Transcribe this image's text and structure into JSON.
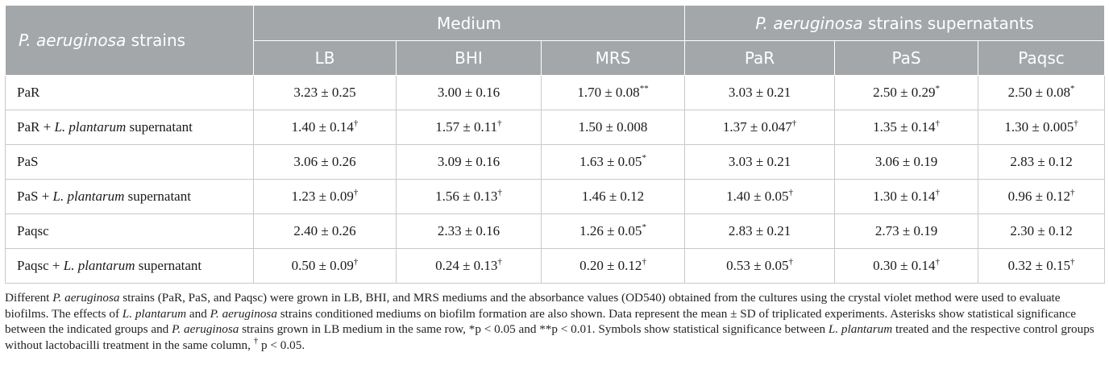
{
  "header": {
    "strain_col_italic": "P. aeruginosa",
    "strain_col_rest": " strains",
    "group_medium": "Medium",
    "group_super_italic": "P. aeruginosa",
    "group_super_rest": " strains supernatants",
    "subcols": [
      "LB",
      "BHI",
      "MRS",
      "PaR",
      "PaS",
      "Paqsc"
    ]
  },
  "rows": [
    {
      "strain": "PaR",
      "species": "",
      "suffix": "",
      "cells": [
        {
          "v": "3.23 ± 0.25",
          "s": ""
        },
        {
          "v": "3.00 ± 0.16",
          "s": ""
        },
        {
          "v": "1.70 ± 0.08",
          "s": "**"
        },
        {
          "v": "3.03 ± 0.21",
          "s": ""
        },
        {
          "v": "2.50 ± 0.29",
          "s": "*"
        },
        {
          "v": "2.50 ± 0.08",
          "s": "*"
        }
      ]
    },
    {
      "strain": "PaR + ",
      "species": "L. plantarum",
      "suffix": " supernatant",
      "cells": [
        {
          "v": "1.40 ± 0.14",
          "s": "†"
        },
        {
          "v": "1.57 ± 0.11",
          "s": "†"
        },
        {
          "v": "1.50 ± 0.008",
          "s": ""
        },
        {
          "v": "1.37 ± 0.047",
          "s": "†"
        },
        {
          "v": "1.35 ± 0.14",
          "s": "†"
        },
        {
          "v": "1.30 ± 0.005",
          "s": "†"
        }
      ]
    },
    {
      "strain": "PaS",
      "species": "",
      "suffix": "",
      "cells": [
        {
          "v": "3.06 ± 0.26",
          "s": ""
        },
        {
          "v": "3.09 ± 0.16",
          "s": ""
        },
        {
          "v": "1.63 ± 0.05",
          "s": "*"
        },
        {
          "v": "3.03 ± 0.21",
          "s": ""
        },
        {
          "v": "3.06 ± 0.19",
          "s": ""
        },
        {
          "v": "2.83 ± 0.12",
          "s": ""
        }
      ]
    },
    {
      "strain": "PaS + ",
      "species": "L. plantarum",
      "suffix": " supernatant",
      "cells": [
        {
          "v": "1.23 ± 0.09",
          "s": "†"
        },
        {
          "v": "1.56 ± 0.13",
          "s": "†"
        },
        {
          "v": "1.46 ± 0.12",
          "s": ""
        },
        {
          "v": "1.40 ± 0.05",
          "s": "†"
        },
        {
          "v": "1.30 ± 0.14",
          "s": "†"
        },
        {
          "v": "0.96 ± 0.12",
          "s": "†"
        }
      ]
    },
    {
      "strain": "Paqsc",
      "species": "",
      "suffix": "",
      "cells": [
        {
          "v": "2.40 ± 0.26",
          "s": ""
        },
        {
          "v": "2.33 ± 0.16",
          "s": ""
        },
        {
          "v": "1.26 ± 0.05",
          "s": "*"
        },
        {
          "v": "2.83 ± 0.21",
          "s": ""
        },
        {
          "v": "2.73 ± 0.19",
          "s": ""
        },
        {
          "v": "2.30 ± 0.12",
          "s": ""
        }
      ]
    },
    {
      "strain": "Paqsc + ",
      "species": "L. plantarum",
      "suffix": " supernatant",
      "cells": [
        {
          "v": "0.50 ± 0.09",
          "s": "†"
        },
        {
          "v": "0.24 ± 0.13",
          "s": "†"
        },
        {
          "v": "0.20 ± 0.12",
          "s": "†"
        },
        {
          "v": "0.53 ± 0.05",
          "s": "†"
        },
        {
          "v": "0.30 ± 0.14",
          "s": "†"
        },
        {
          "v": "0.32 ± 0.15",
          "s": "†"
        }
      ]
    }
  ],
  "footnote": {
    "p1": "Different ",
    "i1": "P. aeruginosa",
    "p2": " strains (PaR, PaS, and Paqsc) were grown in LB, BHI, and MRS mediums and the absorbance values (OD540) obtained from the cultures using the crystal violet method were used to evaluate biofilms. The effects of ",
    "i2": "L. plantarum",
    "p3": " and ",
    "i3": "P. aeruginosa",
    "p4": " strains conditioned mediums on biofilm formation are also shown. Data represent the mean ± SD of triplicated experiments. Asterisks show statistical significance between the indicated groups and ",
    "i4": "P. aeruginosa",
    "p5": " strains grown in LB medium in the same row, *p < 0.05 and **p < 0.01. Symbols show statistical significance between ",
    "i5": "L. plantarum",
    "p6": " treated and the respective control groups without lactobacilli treatment in the same column, ",
    "dagger": "†",
    "p7": " p < 0.05."
  }
}
